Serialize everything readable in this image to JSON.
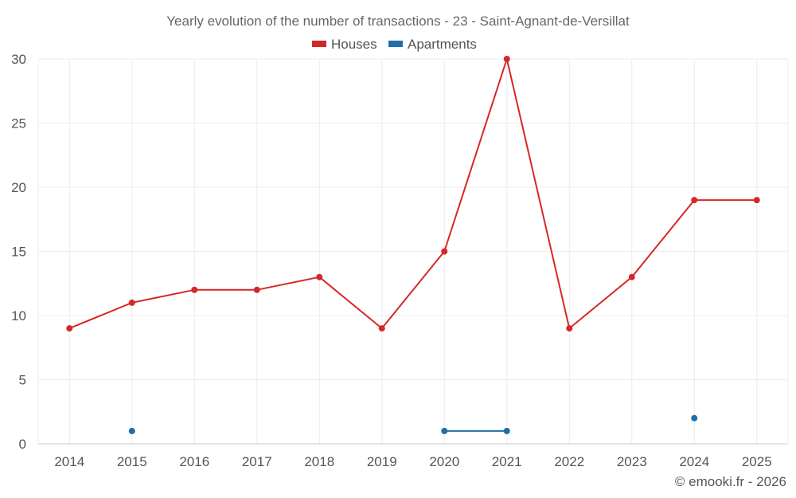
{
  "chart_data": {
    "type": "line",
    "title": "Yearly evolution of the number of transactions - 23 - Saint-Agnant-de-Versillat",
    "categories": [
      "2014",
      "2015",
      "2016",
      "2017",
      "2018",
      "2019",
      "2020",
      "2021",
      "2022",
      "2023",
      "2024",
      "2025"
    ],
    "ylim": [
      0,
      30
    ],
    "yticks": [
      0,
      5,
      10,
      15,
      20,
      25,
      30
    ],
    "grid": true,
    "legend_position": "top-center",
    "series": [
      {
        "name": "Houses",
        "color": "#d62728",
        "values": [
          9,
          11,
          12,
          12,
          13,
          9,
          15,
          30,
          9,
          13,
          19,
          19
        ]
      },
      {
        "name": "Apartments",
        "color": "#1f6ea8",
        "values": [
          null,
          1,
          null,
          null,
          null,
          null,
          1,
          1,
          null,
          null,
          2,
          null
        ]
      }
    ]
  },
  "credit": "© emooki.fr - 2026"
}
